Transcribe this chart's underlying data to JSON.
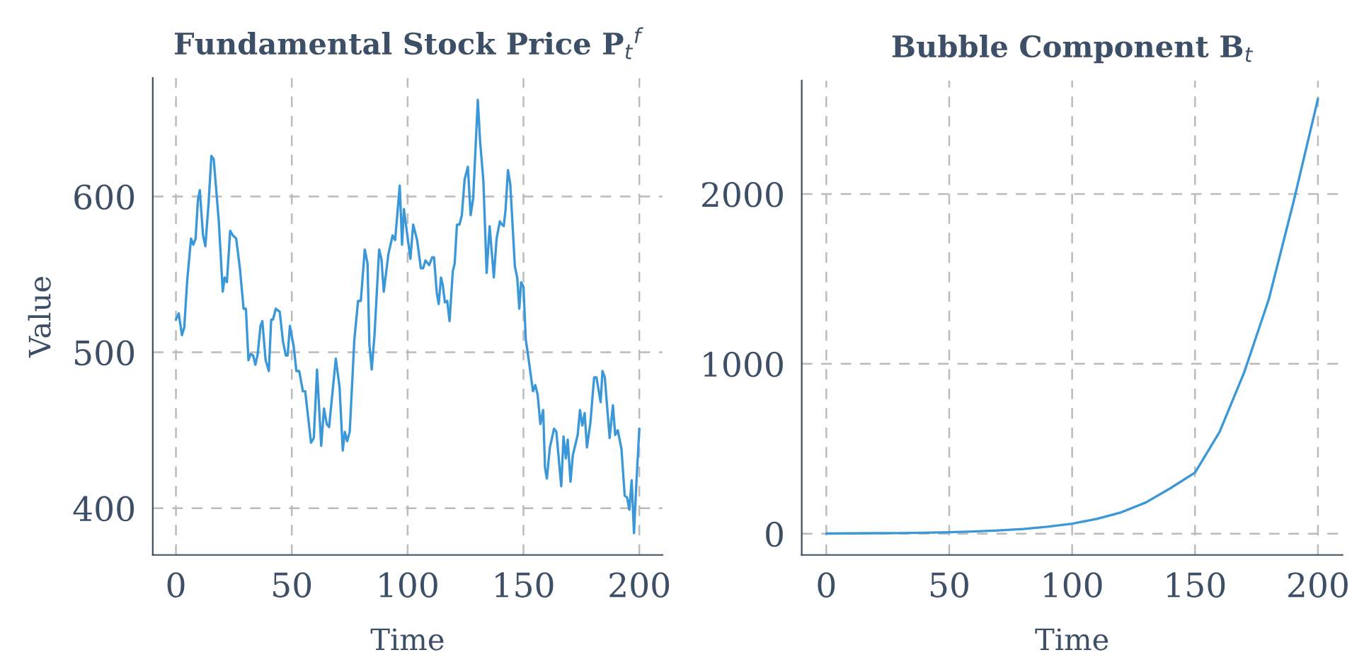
{
  "chart_data": [
    {
      "type": "line",
      "title": "Fundamental Stock Price P$_{t}$$^{f}$",
      "xlabel": "Time",
      "ylabel": "Value",
      "xlim": [
        -10,
        210
      ],
      "xticks": [
        0,
        50,
        100,
        150,
        200
      ],
      "ylim": [
        370,
        676
      ],
      "yticks": [
        400,
        500,
        600
      ],
      "grid": true,
      "series": [
        {
          "color": "#3a97d8",
          "x": [
            0,
            1.2,
            2.6,
            3.6,
            4.8,
            6.5,
            7.5,
            8.5,
            9.5,
            10.3,
            11.7,
            12.7,
            14.1,
            15.3,
            16.3,
            18.5,
            20.2,
            21,
            22,
            23.4,
            24.6,
            26,
            27.6,
            29.2,
            30.2,
            31.3,
            32.3,
            33.3,
            34.3,
            35.3,
            36.5,
            37.3,
            38.7,
            40.1,
            41.1,
            41.9,
            43.1,
            44.8,
            46.2,
            47.4,
            48.2,
            49.2,
            50.8,
            52,
            53.2,
            54.8,
            55.8,
            58.3,
            59.5,
            60.9,
            62.7,
            63.9,
            65.1,
            66.1,
            69,
            70.6,
            72,
            72.9,
            73.9,
            75,
            77,
            78.6,
            79.8,
            81.5,
            82.7,
            83.5,
            84.5,
            85.7,
            87.7,
            88.7,
            89.7,
            91.7,
            93.5,
            94.6,
            96.6,
            97.6,
            98.4,
            101.2,
            102.4,
            104.1,
            105.7,
            106.7,
            107.7,
            109.3,
            110.6,
            111.4,
            112.6,
            113.4,
            114.4,
            115.2,
            116.1,
            117.1,
            118.1,
            119.5,
            120.3,
            121.3,
            122.4,
            123.4,
            124.6,
            126,
            127.2,
            128.3,
            130.3,
            131.3,
            132.7,
            134.1,
            135.4,
            137.2,
            138.4,
            139.8,
            140.7,
            141.5,
            142.3,
            143.3,
            144.3,
            146.3,
            147.3,
            148.2,
            149,
            150,
            151,
            152,
            154.1,
            155.1,
            156.1,
            157.3,
            158.5,
            159.3,
            160.1,
            161.4,
            163.2,
            164.2,
            166.3,
            167.3,
            168.3,
            169.1,
            170.3,
            171.3,
            173.4,
            174.4,
            175.4,
            176.4,
            177.4,
            178.9,
            180.5,
            181.5,
            183.3,
            184.1,
            185.1,
            187.2,
            188.6,
            189.6,
            190.7,
            192.3,
            193.7,
            194.7,
            195.7,
            196.7,
            197.7,
            198.8,
            200
          ],
          "values": [
            521,
            525,
            511,
            516,
            545,
            573,
            569,
            573,
            598,
            604,
            575,
            568,
            596,
            626,
            624,
            584,
            539,
            548,
            545,
            578,
            575,
            573,
            554,
            528,
            528,
            495,
            499,
            498,
            492,
            499,
            517,
            520,
            495,
            488,
            521,
            521,
            528,
            526,
            507,
            498,
            498,
            517,
            504,
            488,
            488,
            475,
            475,
            442,
            445,
            489,
            440,
            464,
            454,
            452,
            496,
            478,
            437,
            449,
            443,
            449,
            508,
            533,
            533,
            566,
            557,
            505,
            489,
            511,
            566,
            560,
            539,
            563,
            575,
            572,
            607,
            569,
            592,
            560,
            582,
            572,
            554,
            554,
            559,
            556,
            561,
            561,
            538,
            531,
            548,
            543,
            532,
            533,
            520,
            552,
            557,
            582,
            582,
            588,
            611,
            619,
            588,
            599,
            662,
            635,
            610,
            551,
            581,
            548,
            573,
            584,
            582,
            581,
            592,
            617,
            608,
            555,
            548,
            528,
            545,
            542,
            508,
            498,
            475,
            479,
            473,
            454,
            463,
            426,
            419,
            439,
            451,
            449,
            414,
            446,
            432,
            444,
            417,
            434,
            447,
            463,
            453,
            461,
            439,
            455,
            484,
            484,
            468,
            488,
            484,
            445,
            466,
            447,
            450,
            438,
            408,
            407,
            399,
            418,
            384,
            418,
            451
          ]
        }
      ]
    },
    {
      "type": "line",
      "title": "Bubble Component B$_{t}$",
      "xlabel": "Time",
      "xlim": [
        -10,
        210
      ],
      "xticks": [
        0,
        50,
        100,
        150,
        200
      ],
      "ylim": [
        -125,
        2667
      ],
      "yticks": [
        0,
        1000,
        2000
      ],
      "grid": true,
      "series": [
        {
          "color": "#3a97d8",
          "x": [
            0,
            10,
            20,
            30,
            40,
            50,
            60,
            70,
            80,
            90,
            100,
            110,
            120,
            130,
            140,
            150,
            160,
            170,
            180,
            190,
            200
          ],
          "values": [
            1,
            2,
            3,
            4,
            6,
            9,
            13,
            19,
            28,
            41,
            59,
            87,
            126,
            184,
            268,
            360,
            600,
            950,
            1380,
            1950,
            2560
          ]
        }
      ]
    }
  ]
}
